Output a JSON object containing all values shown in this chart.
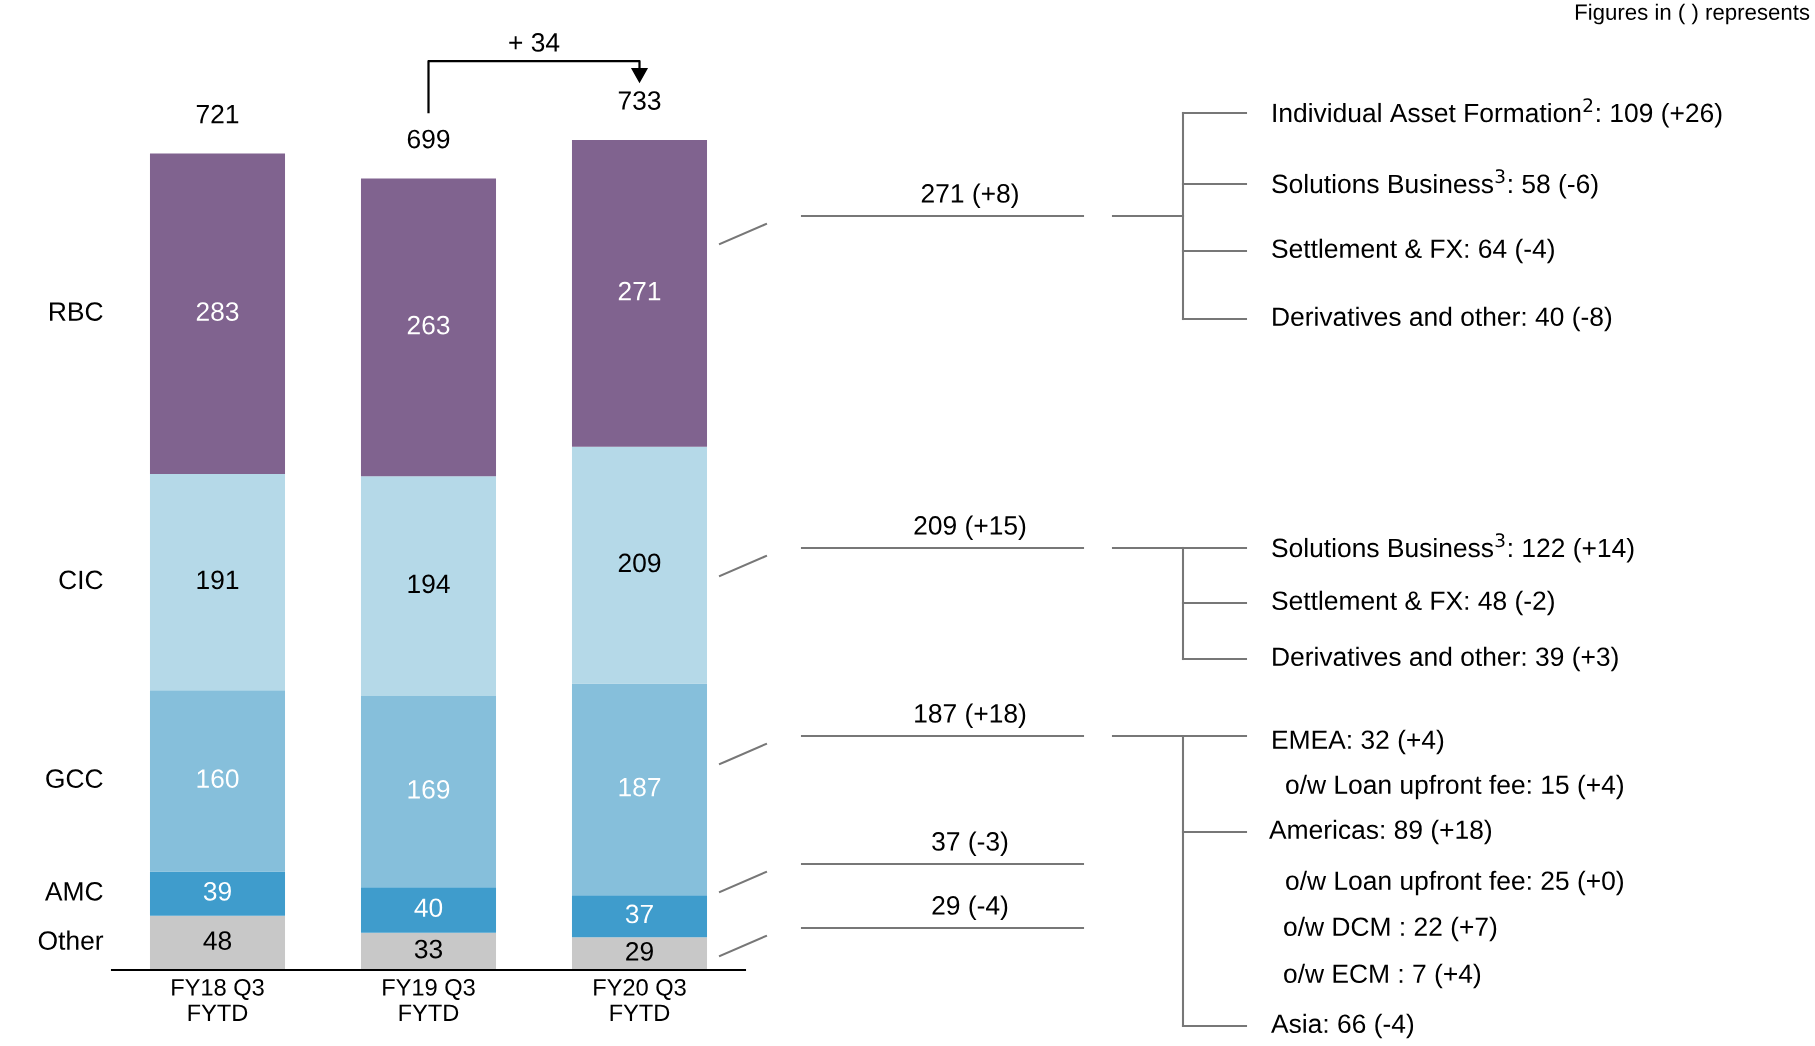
{
  "chart_data": {
    "type": "bar",
    "stacked": true,
    "data_labels": true,
    "categories": [
      "FY18 Q3\nFYTD",
      "FY19 Q3\nFYTD",
      "FY20 Q3\nFYTD"
    ],
    "series": [
      {
        "name": "Other",
        "color": "#c8c8c8",
        "values": [
          48,
          33,
          29
        ]
      },
      {
        "name": "AMC",
        "color": "#3f9ccc",
        "values": [
          39,
          40,
          37
        ]
      },
      {
        "name": "GCC",
        "color": "#86bfdb",
        "values": [
          160,
          169,
          187
        ]
      },
      {
        "name": "CIC",
        "color": "#b5d9e8",
        "values": [
          191,
          194,
          209
        ]
      },
      {
        "name": "RBC",
        "color": "#80638f",
        "values": [
          283,
          263,
          271
        ]
      }
    ],
    "totals": [
      "721",
      "699",
      "733"
    ],
    "annotations": [
      "Figures in ( ) represents",
      "+ 34",
      "271 (+8)",
      "209 (+15)",
      "187 (+18)",
      "37 (-3)",
      "29 (-4)",
      "Individual Asset Formation$^{2}$: 109 (+26)",
      "Solutions Business$^{3}$: 58 (-6)",
      "Settlement & FX: 64 (-4)",
      "Derivatives and other: 40 (-8)",
      "Solutions Business$^{3}$: 122 (+14)",
      "Settlement & FX: 48 (-2)",
      "Derivatives and other: 39 (+3)",
      "EMEA: 32 (+4)",
      "o/w Loan upfront fee: 15 (+4)",
      "Americas: 89 (+18)",
      "o/w Loan upfront fee: 25 (+0)",
      "o/w DCM : 22 (+7)",
      "o/w ECM : 7 (+4)",
      "Asia: 66 (-4)"
    ]
  }
}
